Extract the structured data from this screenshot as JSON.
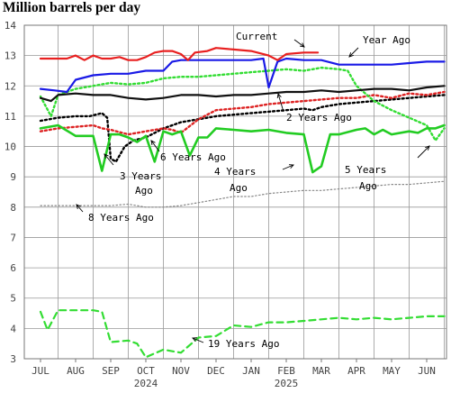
{
  "chart_data": {
    "type": "line",
    "title": "Million barrels per day",
    "xlabel": "",
    "ylabel": "",
    "ylim": [
      3,
      14
    ],
    "yticks": [
      "3",
      "4",
      "5",
      "6",
      "7",
      "8",
      "9",
      "10",
      "11",
      "12",
      "13",
      "14"
    ],
    "x_months": [
      "JUL",
      "AUG",
      "SEP",
      "OCT",
      "NOV",
      "DEC",
      "JAN",
      "FEB",
      "MAR",
      "APR",
      "MAY",
      "JUN"
    ],
    "x_years": [
      "2024",
      "2025"
    ],
    "grid": true,
    "legend": "inline annotations",
    "colors": {
      "current": "#e82020",
      "year_ago": "#1a1ae6",
      "two_years_ago": "#dd2222",
      "three_years_ago": "#000000",
      "four_years_ago": "#22cc22",
      "five_years_ago": "#33dd33",
      "six_years_ago": "#111111",
      "eight_years_ago": "#888888",
      "nineteen_years_ago": "#33dd33",
      "grid": "#999999"
    },
    "series": [
      {
        "name": "Current",
        "style": "solid",
        "points": [
          [
            0,
            12.9
          ],
          [
            1,
            12.9
          ],
          [
            1.5,
            12.9
          ],
          [
            2,
            13.0
          ],
          [
            2.5,
            12.85
          ],
          [
            3,
            13.0
          ],
          [
            3.5,
            12.9
          ],
          [
            4,
            12.9
          ],
          [
            4.5,
            12.95
          ],
          [
            5,
            12.85
          ],
          [
            5.5,
            12.85
          ],
          [
            6,
            12.95
          ],
          [
            6.5,
            13.1
          ],
          [
            7,
            13.15
          ],
          [
            7.5,
            13.15
          ],
          [
            8,
            13.05
          ],
          [
            8.4,
            12.85
          ],
          [
            8.8,
            13.1
          ],
          [
            9.5,
            13.15
          ],
          [
            10,
            13.25
          ],
          [
            11,
            13.2
          ],
          [
            12,
            13.15
          ],
          [
            13,
            13.0
          ],
          [
            13.5,
            12.85
          ],
          [
            14,
            13.05
          ],
          [
            15,
            13.1
          ],
          [
            15.8,
            13.1
          ]
        ]
      },
      {
        "name": "Year Ago",
        "style": "solid",
        "points": [
          [
            0,
            11.9
          ],
          [
            0.8,
            11.85
          ],
          [
            1.5,
            11.8
          ],
          [
            2,
            12.2
          ],
          [
            3,
            12.35
          ],
          [
            4,
            12.4
          ],
          [
            5,
            12.4
          ],
          [
            6,
            12.5
          ],
          [
            7,
            12.5
          ],
          [
            7.5,
            12.8
          ],
          [
            8,
            12.85
          ],
          [
            9,
            12.85
          ],
          [
            10,
            12.85
          ],
          [
            11,
            12.85
          ],
          [
            12,
            12.85
          ],
          [
            12.7,
            12.9
          ],
          [
            13,
            11.95
          ],
          [
            13.5,
            12.8
          ],
          [
            14,
            12.9
          ],
          [
            15,
            12.85
          ],
          [
            16,
            12.85
          ],
          [
            17,
            12.7
          ],
          [
            18,
            12.7
          ],
          [
            19,
            12.7
          ],
          [
            20,
            12.7
          ],
          [
            21,
            12.75
          ],
          [
            22,
            12.8
          ],
          [
            23,
            12.8
          ]
        ]
      },
      {
        "name": "2 Years Ago",
        "style": "dotted",
        "points": [
          [
            0,
            10.5
          ],
          [
            1,
            10.6
          ],
          [
            2,
            10.65
          ],
          [
            3,
            10.7
          ],
          [
            3.5,
            10.6
          ],
          [
            4,
            10.55
          ],
          [
            5,
            10.4
          ],
          [
            6,
            10.5
          ],
          [
            7,
            10.6
          ],
          [
            7.5,
            10.55
          ],
          [
            8,
            10.45
          ],
          [
            9,
            10.9
          ],
          [
            10,
            11.2
          ],
          [
            11,
            11.25
          ],
          [
            12,
            11.3
          ],
          [
            13,
            11.4
          ],
          [
            14,
            11.45
          ],
          [
            15,
            11.5
          ],
          [
            16,
            11.55
          ],
          [
            17,
            11.6
          ],
          [
            18,
            11.6
          ],
          [
            19,
            11.7
          ],
          [
            20,
            11.6
          ],
          [
            21,
            11.75
          ],
          [
            22,
            11.7
          ],
          [
            23,
            11.8
          ]
        ]
      },
      {
        "name": "3 Years Ago",
        "style": "dotted",
        "points": [
          [
            0,
            10.85
          ],
          [
            1,
            10.95
          ],
          [
            2,
            11.0
          ],
          [
            2.8,
            11.0
          ],
          [
            3.5,
            11.1
          ],
          [
            3.8,
            10.95
          ],
          [
            4,
            9.6
          ],
          [
            4.3,
            9.5
          ],
          [
            4.8,
            10.0
          ],
          [
            5.3,
            10.2
          ],
          [
            6,
            10.3
          ],
          [
            7,
            10.6
          ],
          [
            8,
            10.8
          ],
          [
            9,
            10.9
          ],
          [
            10,
            11.0
          ],
          [
            11,
            11.05
          ],
          [
            12,
            11.1
          ],
          [
            13,
            11.15
          ],
          [
            14,
            11.2
          ],
          [
            15,
            11.25
          ],
          [
            15.5,
            11.2
          ],
          [
            16,
            11.3
          ],
          [
            17,
            11.4
          ],
          [
            18,
            11.45
          ],
          [
            19,
            11.5
          ],
          [
            20,
            11.55
          ],
          [
            21,
            11.6
          ],
          [
            22,
            11.65
          ],
          [
            23,
            11.7
          ]
        ]
      },
      {
        "name": "4 Years Ago",
        "style": "solid",
        "points": [
          [
            0,
            10.6
          ],
          [
            1,
            10.7
          ],
          [
            2,
            10.35
          ],
          [
            3,
            10.35
          ],
          [
            3.5,
            9.2
          ],
          [
            4,
            10.4
          ],
          [
            4.5,
            10.4
          ],
          [
            5,
            10.3
          ],
          [
            5.5,
            10.15
          ],
          [
            6,
            10.35
          ],
          [
            6.5,
            9.5
          ],
          [
            7,
            10.5
          ],
          [
            7.5,
            10.4
          ],
          [
            8,
            10.5
          ],
          [
            8.5,
            9.7
          ],
          [
            9,
            10.3
          ],
          [
            9.5,
            10.3
          ],
          [
            10,
            10.6
          ],
          [
            11,
            10.55
          ],
          [
            12,
            10.5
          ],
          [
            13,
            10.55
          ],
          [
            14,
            10.45
          ],
          [
            15,
            10.4
          ],
          [
            15.5,
            9.15
          ],
          [
            16,
            9.35
          ],
          [
            16.5,
            10.4
          ],
          [
            17,
            10.4
          ],
          [
            18,
            10.55
          ],
          [
            18.5,
            10.6
          ],
          [
            19,
            10.4
          ],
          [
            19.5,
            10.55
          ],
          [
            20,
            10.4
          ],
          [
            21,
            10.5
          ],
          [
            21.5,
            10.45
          ],
          [
            22,
            10.6
          ],
          [
            22.5,
            10.6
          ],
          [
            23,
            10.7
          ]
        ]
      },
      {
        "name": "5 Years Ago",
        "style": "dotted",
        "points": [
          [
            0,
            11.65
          ],
          [
            0.6,
            11.0
          ],
          [
            1,
            11.7
          ],
          [
            2,
            11.9
          ],
          [
            3,
            12.0
          ],
          [
            4,
            12.1
          ],
          [
            5,
            12.05
          ],
          [
            6,
            12.1
          ],
          [
            7,
            12.25
          ],
          [
            8,
            12.3
          ],
          [
            9,
            12.3
          ],
          [
            10,
            12.35
          ],
          [
            11,
            12.4
          ],
          [
            12,
            12.45
          ],
          [
            13,
            12.5
          ],
          [
            14,
            12.55
          ],
          [
            15,
            12.5
          ],
          [
            16,
            12.6
          ],
          [
            17,
            12.55
          ],
          [
            17.5,
            12.5
          ],
          [
            18,
            12.0
          ],
          [
            19,
            11.5
          ],
          [
            20,
            11.2
          ],
          [
            21,
            10.95
          ],
          [
            22,
            10.7
          ],
          [
            22.5,
            10.2
          ],
          [
            23,
            10.6
          ]
        ]
      },
      {
        "name": "6 Years Ago",
        "style": "solid",
        "points": [
          [
            0,
            11.6
          ],
          [
            0.6,
            11.5
          ],
          [
            1,
            11.7
          ],
          [
            2,
            11.75
          ],
          [
            3,
            11.7
          ],
          [
            4,
            11.7
          ],
          [
            5,
            11.6
          ],
          [
            6,
            11.55
          ],
          [
            7,
            11.6
          ],
          [
            8,
            11.7
          ],
          [
            9,
            11.7
          ],
          [
            10,
            11.65
          ],
          [
            11,
            11.7
          ],
          [
            12,
            11.7
          ],
          [
            13,
            11.75
          ],
          [
            14,
            11.8
          ],
          [
            15,
            11.8
          ],
          [
            16,
            11.85
          ],
          [
            17,
            11.8
          ],
          [
            18,
            11.85
          ],
          [
            19,
            11.9
          ],
          [
            20,
            11.9
          ],
          [
            21,
            11.85
          ],
          [
            22,
            11.95
          ],
          [
            23,
            12.0
          ]
        ]
      },
      {
        "name": "8 Years Ago",
        "style": "dotted",
        "points": [
          [
            0,
            8.05
          ],
          [
            1,
            8.05
          ],
          [
            2,
            8.05
          ],
          [
            3,
            8.05
          ],
          [
            4,
            8.05
          ],
          [
            5,
            8.1
          ],
          [
            6,
            8.0
          ],
          [
            7,
            8.0
          ],
          [
            8,
            8.05
          ],
          [
            9,
            8.15
          ],
          [
            10,
            8.25
          ],
          [
            11,
            8.35
          ],
          [
            12,
            8.35
          ],
          [
            13,
            8.45
          ],
          [
            14,
            8.5
          ],
          [
            15,
            8.55
          ],
          [
            16,
            8.55
          ],
          [
            17,
            8.6
          ],
          [
            18,
            8.65
          ],
          [
            19,
            8.7
          ],
          [
            20,
            8.75
          ],
          [
            21,
            8.75
          ],
          [
            22,
            8.8
          ],
          [
            23,
            8.85
          ]
        ]
      },
      {
        "name": "19 Years Ago",
        "style": "dashed",
        "points": [
          [
            0,
            4.55
          ],
          [
            0.4,
            3.95
          ],
          [
            1,
            4.6
          ],
          [
            2,
            4.6
          ],
          [
            3,
            4.6
          ],
          [
            3.5,
            4.55
          ],
          [
            4,
            3.55
          ],
          [
            5,
            3.6
          ],
          [
            5.5,
            3.5
          ],
          [
            6,
            3.05
          ],
          [
            7,
            3.3
          ],
          [
            8,
            3.2
          ],
          [
            9,
            3.7
          ],
          [
            10,
            3.75
          ],
          [
            11,
            4.1
          ],
          [
            12,
            4.05
          ],
          [
            13,
            4.2
          ],
          [
            14,
            4.2
          ],
          [
            15,
            4.25
          ],
          [
            16,
            4.3
          ],
          [
            17,
            4.35
          ],
          [
            18,
            4.3
          ],
          [
            19,
            4.35
          ],
          [
            20,
            4.3
          ],
          [
            21,
            4.35
          ],
          [
            22,
            4.4
          ],
          [
            23,
            4.4
          ]
        ]
      }
    ],
    "annotations": [
      {
        "text": "Current",
        "series": "Current"
      },
      {
        "text": "Year Ago",
        "series": "Year Ago"
      },
      {
        "text": "2 Years Ago",
        "series": "2 Years Ago"
      },
      {
        "text": "3 Years",
        "series": "3 Years Ago"
      },
      {
        "text": "Ago",
        "series": "3 Years Ago"
      },
      {
        "text": "4 Years",
        "series": "4 Years Ago"
      },
      {
        "text": "Ago",
        "series": "4 Years Ago"
      },
      {
        "text": "5 Years",
        "series": "5 Years Ago"
      },
      {
        "text": "Ago",
        "series": "5 Years Ago"
      },
      {
        "text": "6 Years Ago",
        "series": "6 Years Ago"
      },
      {
        "text": "8 Years Ago",
        "series": "8 Years Ago"
      },
      {
        "text": "19 Years Ago",
        "series": "19 Years Ago"
      }
    ]
  }
}
